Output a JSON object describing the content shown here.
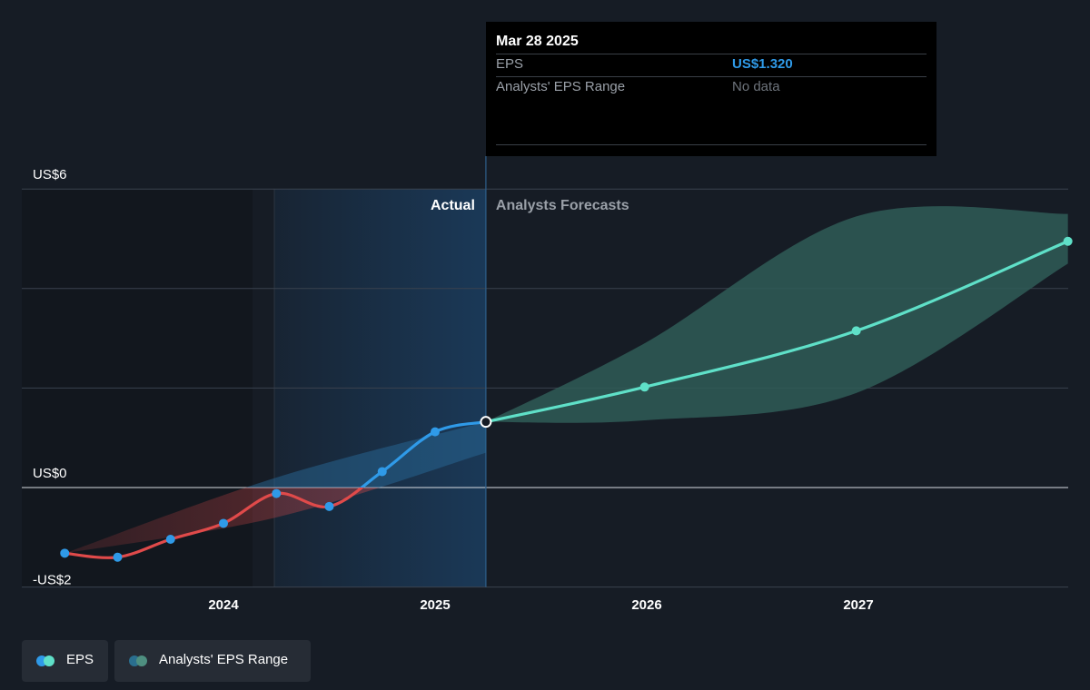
{
  "chart_data": {
    "type": "line",
    "x_ticks": [
      "2024",
      "2025",
      "2026",
      "2027"
    ],
    "y_labels": [
      "US$6",
      "US$0",
      "-US$2"
    ],
    "ylim": [
      -2,
      6
    ],
    "grid": true,
    "section_labels": {
      "actual": "Actual",
      "forecast": "Analysts Forecasts"
    },
    "series": [
      {
        "name": "EPS",
        "kind": "actual",
        "points": [
          {
            "t": 2023.25,
            "v": -1.32
          },
          {
            "t": 2023.5,
            "v": -1.4
          },
          {
            "t": 2023.75,
            "v": -1.04
          },
          {
            "t": 2024.0,
            "v": -0.72
          },
          {
            "t": 2024.25,
            "v": -0.12
          },
          {
            "t": 2024.5,
            "v": -0.38
          },
          {
            "t": 2024.75,
            "v": 0.32
          },
          {
            "t": 2025.0,
            "v": 1.12
          },
          {
            "t": 2025.24,
            "v": 1.32
          }
        ]
      },
      {
        "name": "EPS",
        "kind": "forecast",
        "points": [
          {
            "t": 2025.24,
            "v": 1.32
          },
          {
            "t": 2025.99,
            "v": 2.02
          },
          {
            "t": 2026.99,
            "v": 3.15
          },
          {
            "t": 2027.99,
            "v": 4.95
          }
        ]
      }
    ],
    "analyst_range": {
      "upper": [
        [
          2025.24,
          1.32
        ],
        [
          2025.99,
          2.9
        ],
        [
          2026.99,
          5.45
        ],
        [
          2027.99,
          5.5
        ]
      ],
      "lower": [
        [
          2025.24,
          1.32
        ],
        [
          2025.99,
          1.35
        ],
        [
          2026.99,
          1.9
        ],
        [
          2027.99,
          4.5
        ]
      ]
    },
    "past_range": {
      "upper": [
        [
          2023.25,
          -1.32
        ],
        [
          2024.25,
          0.2
        ],
        [
          2025.24,
          1.32
        ]
      ],
      "lower": [
        [
          2023.25,
          -1.32
        ],
        [
          2024.25,
          -0.6
        ],
        [
          2025.24,
          0.7
        ]
      ]
    },
    "tooltip": {
      "date": "Mar 28 2025",
      "eps_label": "EPS",
      "eps_value": "US$1.320",
      "range_label": "Analysts' EPS Range",
      "range_value": "No data"
    },
    "legend": [
      {
        "label": "EPS",
        "colors": [
          "#2f9ae8",
          "#5fe0c8"
        ]
      },
      {
        "label": "Analysts' EPS Range",
        "colors": [
          "#2a6f8f",
          "#4e8f80"
        ]
      }
    ],
    "colors": {
      "background": "#161c25",
      "actual_negative": "#e04a4a",
      "actual_positive": "#2f9ae8",
      "forecast": "#5fe0c8",
      "forecast_band": "#2f5c57"
    }
  }
}
